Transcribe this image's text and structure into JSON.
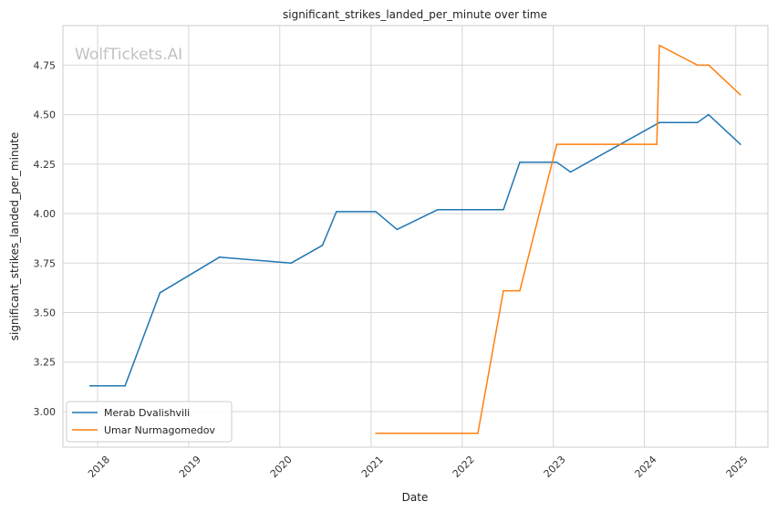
{
  "chart_data": {
    "type": "line",
    "title": "significant_strikes_landed_per_minute over time",
    "xlabel": "Date",
    "ylabel": "significant_strikes_landed_per_minute",
    "watermark": "WolfTickets.AI",
    "xlim": [
      "2017-08-15",
      "2025-05-10"
    ],
    "ylim": [
      2.82,
      4.95
    ],
    "x_ticks": [
      "2018",
      "2019",
      "2020",
      "2021",
      "2022",
      "2023",
      "2024",
      "2025"
    ],
    "y_ticks": [
      "3.00",
      "3.25",
      "3.50",
      "3.75",
      "4.00",
      "4.25",
      "4.50",
      "4.75"
    ],
    "grid": true,
    "legend_position": "lower-left",
    "series": [
      {
        "name": "Merab Dvalishvili",
        "color": "#1f77b4",
        "x": [
          "2017-12-01",
          "2018-04-21",
          "2018-09-08",
          "2019-05-04",
          "2020-02-15",
          "2020-06-20",
          "2020-08-15",
          "2021-01-20",
          "2021-04-15",
          "2021-09-25",
          "2022-06-15",
          "2022-08-20",
          "2023-01-15",
          "2023-03-11",
          "2024-03-01",
          "2024-08-01",
          "2024-09-14",
          "2025-01-20"
        ],
        "values": [
          3.13,
          3.13,
          3.6,
          3.78,
          3.75,
          3.84,
          4.01,
          4.01,
          3.92,
          4.02,
          4.02,
          4.26,
          4.26,
          4.21,
          4.46,
          4.46,
          4.5,
          4.35
        ]
      },
      {
        "name": "Umar Nurmagomedov",
        "color": "#ff7f0e",
        "x": [
          "2021-01-20",
          "2022-03-05",
          "2022-06-15",
          "2022-08-20",
          "2023-01-15",
          "2024-02-20",
          "2024-03-01",
          "2024-08-01",
          "2024-09-15",
          "2025-01-20"
        ],
        "values": [
          2.89,
          2.89,
          3.61,
          3.61,
          4.35,
          4.35,
          4.85,
          4.75,
          4.75,
          4.6
        ]
      }
    ]
  }
}
